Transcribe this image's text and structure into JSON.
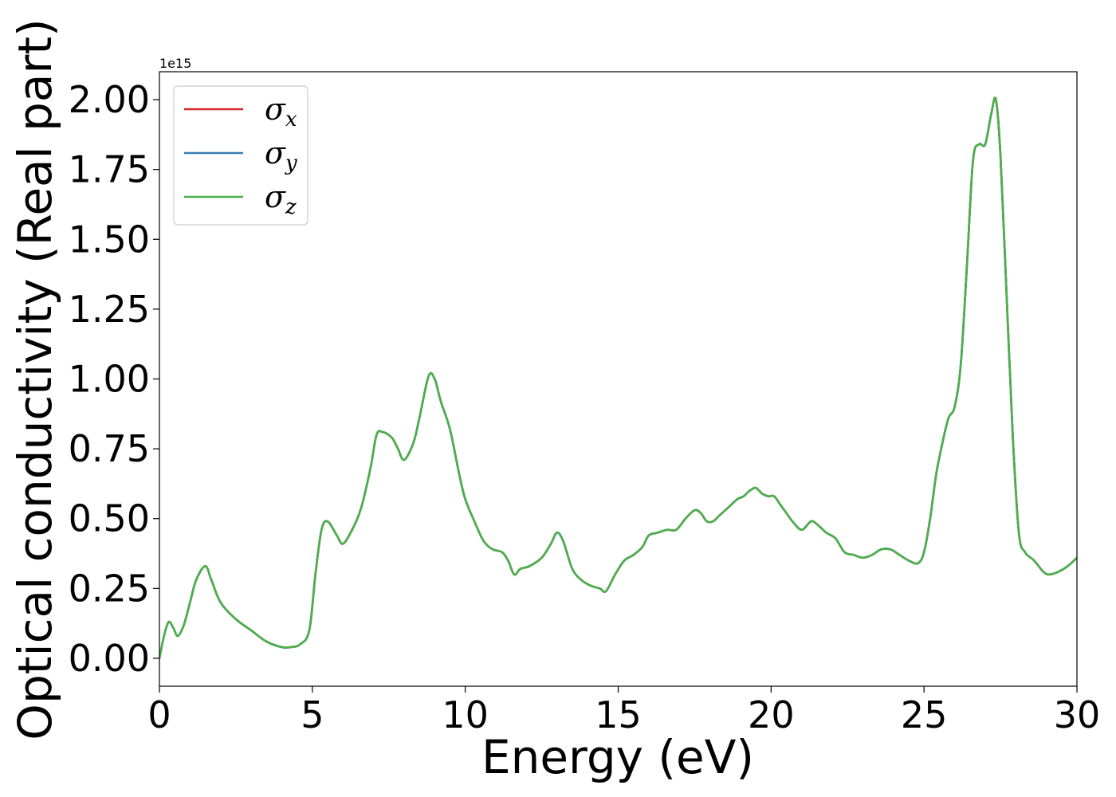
{
  "chart_data": {
    "type": "line",
    "xlabel": "Energy (eV)",
    "ylabel": "Optical conductivity (Real part)",
    "y_offset_label": "1e15",
    "xlim": [
      0,
      30
    ],
    "ylim": [
      -0.1,
      2.1
    ],
    "x_ticks": [
      "0",
      "5",
      "10",
      "15",
      "20",
      "25",
      "30"
    ],
    "y_ticks": [
      "0.00",
      "0.25",
      "0.50",
      "0.75",
      "1.00",
      "1.25",
      "1.50",
      "1.75",
      "2.00"
    ],
    "grid": false,
    "legend_position": "upper left",
    "series": [
      {
        "name": "σx",
        "symbol": "σ",
        "sub": "x",
        "color": "#d62728",
        "visible_curve": false,
        "x": [
          0,
          0.15,
          0.3,
          0.45,
          0.6,
          0.8,
          1.0,
          1.2,
          1.5,
          1.7,
          2.0,
          2.5,
          3.0,
          3.5,
          4.0,
          4.3,
          4.6,
          4.9,
          5.1,
          5.3,
          5.5,
          5.8,
          6.0,
          6.3,
          6.6,
          6.9,
          7.1,
          7.3,
          7.6,
          7.8,
          8.0,
          8.3,
          8.5,
          8.8,
          9.0,
          9.2,
          9.5,
          9.8,
          10.0,
          10.3,
          10.6,
          10.9,
          11.2,
          11.4,
          11.6,
          11.8,
          12.1,
          12.5,
          12.8,
          13.0,
          13.2,
          13.5,
          13.8,
          14.1,
          14.4,
          14.6,
          14.9,
          15.2,
          15.5,
          15.8,
          16.0,
          16.3,
          16.6,
          16.9,
          17.2,
          17.5,
          17.7,
          17.9,
          18.1,
          18.3,
          18.6,
          18.9,
          19.1,
          19.3,
          19.5,
          19.7,
          19.9,
          20.1,
          20.3,
          20.5,
          20.7,
          21.0,
          21.3,
          21.5,
          21.8,
          22.1,
          22.4,
          22.7,
          23.0,
          23.3,
          23.6,
          23.9,
          24.2,
          24.5,
          24.8,
          25.0,
          25.2,
          25.4,
          25.6,
          25.8,
          26.0,
          26.2,
          26.4,
          26.6,
          26.8,
          27.0,
          27.2,
          27.35,
          27.5,
          27.7,
          27.9,
          28.1,
          28.3,
          28.6,
          28.9,
          29.1,
          29.4,
          29.7,
          30.0
        ],
        "y": [
          0.0,
          0.08,
          0.13,
          0.11,
          0.08,
          0.12,
          0.2,
          0.28,
          0.33,
          0.28,
          0.2,
          0.14,
          0.1,
          0.06,
          0.04,
          0.04,
          0.05,
          0.1,
          0.3,
          0.46,
          0.49,
          0.44,
          0.41,
          0.46,
          0.54,
          0.68,
          0.8,
          0.81,
          0.79,
          0.75,
          0.71,
          0.77,
          0.86,
          1.01,
          1.0,
          0.92,
          0.82,
          0.66,
          0.57,
          0.49,
          0.42,
          0.39,
          0.38,
          0.35,
          0.3,
          0.32,
          0.33,
          0.36,
          0.41,
          0.45,
          0.42,
          0.32,
          0.28,
          0.26,
          0.25,
          0.24,
          0.3,
          0.35,
          0.37,
          0.4,
          0.44,
          0.45,
          0.46,
          0.46,
          0.5,
          0.53,
          0.52,
          0.49,
          0.49,
          0.51,
          0.54,
          0.57,
          0.58,
          0.6,
          0.61,
          0.59,
          0.58,
          0.58,
          0.55,
          0.52,
          0.49,
          0.46,
          0.49,
          0.48,
          0.45,
          0.43,
          0.38,
          0.37,
          0.36,
          0.37,
          0.39,
          0.39,
          0.37,
          0.35,
          0.34,
          0.38,
          0.5,
          0.66,
          0.77,
          0.86,
          0.9,
          1.05,
          1.4,
          1.78,
          1.84,
          1.84,
          1.95,
          2.0,
          1.8,
          1.3,
          0.8,
          0.45,
          0.38,
          0.35,
          0.31,
          0.3,
          0.31,
          0.33,
          0.36
        ]
      },
      {
        "name": "σy",
        "symbol": "σ",
        "sub": "y",
        "color": "#377eb8",
        "visible_curve": false,
        "x": [
          0,
          0.15,
          0.3,
          0.45,
          0.6,
          0.8,
          1.0,
          1.2,
          1.5,
          1.7,
          2.0,
          2.5,
          3.0,
          3.5,
          4.0,
          4.3,
          4.6,
          4.9,
          5.1,
          5.3,
          5.5,
          5.8,
          6.0,
          6.3,
          6.6,
          6.9,
          7.1,
          7.3,
          7.6,
          7.8,
          8.0,
          8.3,
          8.5,
          8.8,
          9.0,
          9.2,
          9.5,
          9.8,
          10.0,
          10.3,
          10.6,
          10.9,
          11.2,
          11.4,
          11.6,
          11.8,
          12.1,
          12.5,
          12.8,
          13.0,
          13.2,
          13.5,
          13.8,
          14.1,
          14.4,
          14.6,
          14.9,
          15.2,
          15.5,
          15.8,
          16.0,
          16.3,
          16.6,
          16.9,
          17.2,
          17.5,
          17.7,
          17.9,
          18.1,
          18.3,
          18.6,
          18.9,
          19.1,
          19.3,
          19.5,
          19.7,
          19.9,
          20.1,
          20.3,
          20.5,
          20.7,
          21.0,
          21.3,
          21.5,
          21.8,
          22.1,
          22.4,
          22.7,
          23.0,
          23.3,
          23.6,
          23.9,
          24.2,
          24.5,
          24.8,
          25.0,
          25.2,
          25.4,
          25.6,
          25.8,
          26.0,
          26.2,
          26.4,
          26.6,
          26.8,
          27.0,
          27.2,
          27.35,
          27.5,
          27.7,
          27.9,
          28.1,
          28.3,
          28.6,
          28.9,
          29.1,
          29.4,
          29.7,
          30.0
        ],
        "y": [
          0.0,
          0.08,
          0.13,
          0.11,
          0.08,
          0.12,
          0.2,
          0.28,
          0.33,
          0.28,
          0.2,
          0.14,
          0.1,
          0.06,
          0.04,
          0.04,
          0.05,
          0.1,
          0.3,
          0.46,
          0.49,
          0.44,
          0.41,
          0.46,
          0.54,
          0.68,
          0.8,
          0.81,
          0.79,
          0.75,
          0.71,
          0.77,
          0.86,
          1.01,
          1.0,
          0.92,
          0.82,
          0.66,
          0.57,
          0.49,
          0.42,
          0.39,
          0.38,
          0.35,
          0.3,
          0.32,
          0.33,
          0.36,
          0.41,
          0.45,
          0.42,
          0.32,
          0.28,
          0.26,
          0.25,
          0.24,
          0.3,
          0.35,
          0.37,
          0.4,
          0.44,
          0.45,
          0.46,
          0.46,
          0.5,
          0.53,
          0.52,
          0.49,
          0.49,
          0.51,
          0.54,
          0.57,
          0.58,
          0.6,
          0.61,
          0.59,
          0.58,
          0.58,
          0.55,
          0.52,
          0.49,
          0.46,
          0.49,
          0.48,
          0.45,
          0.43,
          0.38,
          0.37,
          0.36,
          0.37,
          0.39,
          0.39,
          0.37,
          0.35,
          0.34,
          0.38,
          0.5,
          0.66,
          0.77,
          0.86,
          0.9,
          1.05,
          1.4,
          1.78,
          1.84,
          1.84,
          1.95,
          2.0,
          1.8,
          1.3,
          0.8,
          0.45,
          0.38,
          0.35,
          0.31,
          0.3,
          0.31,
          0.33,
          0.36
        ]
      },
      {
        "name": "σz",
        "symbol": "σ",
        "sub": "z",
        "color": "#4daf4a",
        "visible_curve": true,
        "x": [
          0,
          0.15,
          0.3,
          0.45,
          0.6,
          0.8,
          1.0,
          1.2,
          1.5,
          1.7,
          2.0,
          2.5,
          3.0,
          3.5,
          4.0,
          4.3,
          4.6,
          4.9,
          5.1,
          5.3,
          5.5,
          5.8,
          6.0,
          6.3,
          6.6,
          6.9,
          7.1,
          7.3,
          7.6,
          7.8,
          8.0,
          8.3,
          8.5,
          8.8,
          9.0,
          9.2,
          9.5,
          9.8,
          10.0,
          10.3,
          10.6,
          10.9,
          11.2,
          11.4,
          11.6,
          11.8,
          12.1,
          12.5,
          12.8,
          13.0,
          13.2,
          13.5,
          13.8,
          14.1,
          14.4,
          14.6,
          14.9,
          15.2,
          15.5,
          15.8,
          16.0,
          16.3,
          16.6,
          16.9,
          17.2,
          17.5,
          17.7,
          17.9,
          18.1,
          18.3,
          18.6,
          18.9,
          19.1,
          19.3,
          19.5,
          19.7,
          19.9,
          20.1,
          20.3,
          20.5,
          20.7,
          21.0,
          21.3,
          21.5,
          21.8,
          22.1,
          22.4,
          22.7,
          23.0,
          23.3,
          23.6,
          23.9,
          24.2,
          24.5,
          24.8,
          25.0,
          25.2,
          25.4,
          25.6,
          25.8,
          26.0,
          26.2,
          26.4,
          26.6,
          26.8,
          27.0,
          27.2,
          27.35,
          27.5,
          27.7,
          27.9,
          28.1,
          28.3,
          28.6,
          28.9,
          29.1,
          29.4,
          29.7,
          30.0
        ],
        "y": [
          0.0,
          0.08,
          0.13,
          0.11,
          0.08,
          0.12,
          0.2,
          0.28,
          0.33,
          0.28,
          0.2,
          0.14,
          0.1,
          0.06,
          0.04,
          0.04,
          0.05,
          0.1,
          0.3,
          0.46,
          0.49,
          0.44,
          0.41,
          0.46,
          0.54,
          0.68,
          0.8,
          0.81,
          0.79,
          0.75,
          0.71,
          0.77,
          0.86,
          1.01,
          1.0,
          0.92,
          0.82,
          0.66,
          0.57,
          0.49,
          0.42,
          0.39,
          0.38,
          0.35,
          0.3,
          0.32,
          0.33,
          0.36,
          0.41,
          0.45,
          0.42,
          0.32,
          0.28,
          0.26,
          0.25,
          0.24,
          0.3,
          0.35,
          0.37,
          0.4,
          0.44,
          0.45,
          0.46,
          0.46,
          0.5,
          0.53,
          0.52,
          0.49,
          0.49,
          0.51,
          0.54,
          0.57,
          0.58,
          0.6,
          0.61,
          0.59,
          0.58,
          0.58,
          0.55,
          0.52,
          0.49,
          0.46,
          0.49,
          0.48,
          0.45,
          0.43,
          0.38,
          0.37,
          0.36,
          0.37,
          0.39,
          0.39,
          0.37,
          0.35,
          0.34,
          0.38,
          0.5,
          0.66,
          0.77,
          0.86,
          0.9,
          1.05,
          1.4,
          1.78,
          1.84,
          1.84,
          1.95,
          2.0,
          1.8,
          1.3,
          0.8,
          0.45,
          0.38,
          0.35,
          0.31,
          0.3,
          0.31,
          0.33,
          0.36
        ]
      }
    ]
  }
}
